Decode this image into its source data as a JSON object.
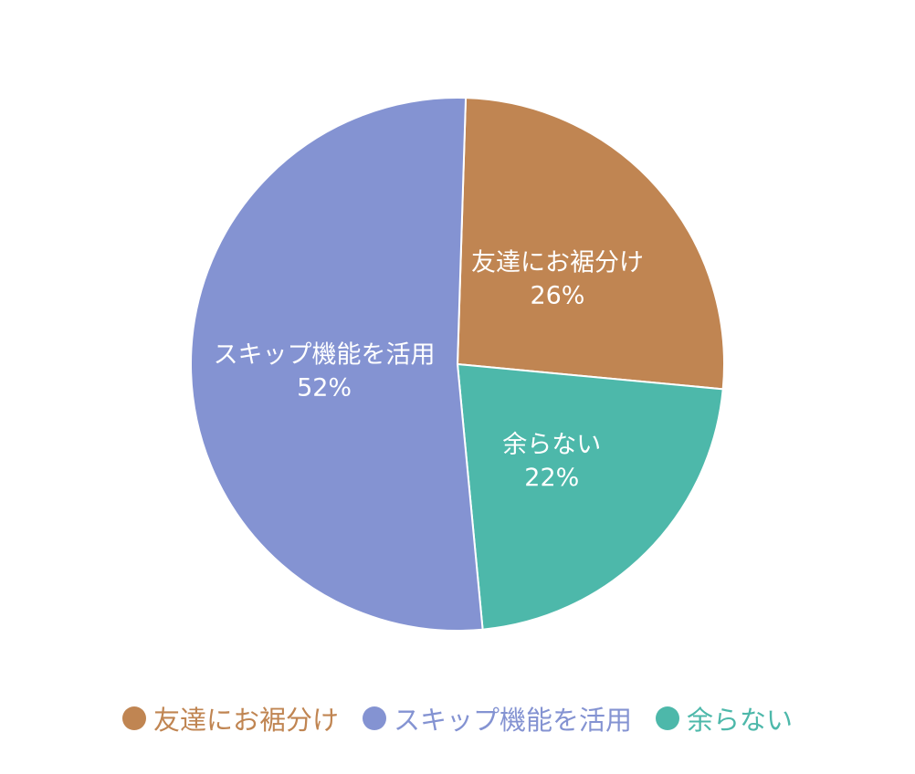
{
  "chart_data": {
    "type": "pie",
    "title": "",
    "slices": [
      {
        "label": "友達にお裾分け",
        "value": 26,
        "pct_text": "26%",
        "color": "#C08552"
      },
      {
        "label": "余らない",
        "value": 22,
        "pct_text": "22%",
        "color": "#4DB8AA"
      },
      {
        "label": "スキップ機能を活用",
        "value": 52,
        "pct_text": "52%",
        "color": "#8493D2"
      }
    ],
    "start_angle": "12 o'clock",
    "direction": "clockwise",
    "legend_placement": "bottom"
  }
}
